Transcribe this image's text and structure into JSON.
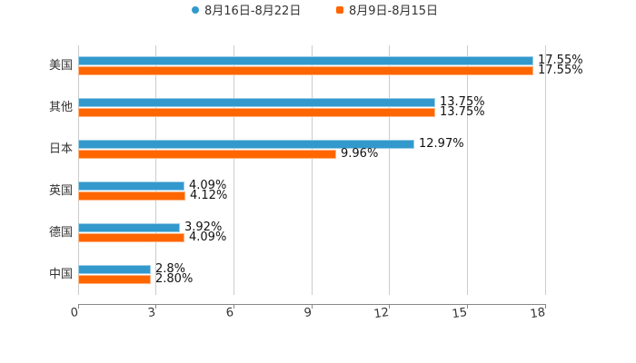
{
  "legend": {
    "items": [
      {
        "label": "8月16日-8月22日",
        "color": "#3399CC",
        "marker": "circle"
      },
      {
        "label": "8月9日-8月15日",
        "color": "#FF6600",
        "marker": "square"
      }
    ]
  },
  "axis": {
    "ticks": [
      "0",
      "3",
      "6",
      "9",
      "12",
      "15",
      "18"
    ]
  },
  "chart_data": {
    "type": "bar",
    "orientation": "horizontal",
    "title": "",
    "xlabel": "",
    "ylabel": "",
    "xlim": [
      0,
      18
    ],
    "grid": true,
    "legend_position": "top",
    "categories": [
      "美国",
      "其他",
      "日本",
      "英国",
      "德国",
      "中国"
    ],
    "series": [
      {
        "name": "8月16日-8月22日",
        "color": "#3399CC",
        "values": [
          17.55,
          13.75,
          12.97,
          4.09,
          3.92,
          2.8
        ],
        "labels": [
          "17.55%",
          "13.75%",
          "12.97%",
          "4.09%",
          "3.92%",
          "2.8%"
        ]
      },
      {
        "name": "8月9日-8月15日",
        "color": "#FF6600",
        "values": [
          17.55,
          13.75,
          9.96,
          4.12,
          4.09,
          2.8
        ],
        "labels": [
          "17.55%",
          "13.75%",
          "9.96%",
          "4.12%",
          "4.09%",
          "2.80%"
        ]
      }
    ],
    "x_ticks": [
      0,
      3,
      6,
      9,
      12,
      15,
      18
    ]
  }
}
